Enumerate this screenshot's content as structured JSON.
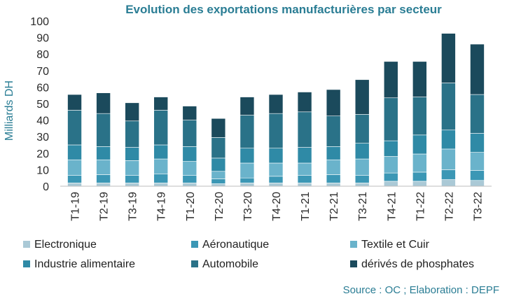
{
  "chart_data": {
    "type": "bar",
    "stacked": true,
    "title": "Evolution des exportations manufacturières par secteur",
    "ylabel": "Milliards DH",
    "xlabel": "",
    "ylim": [
      0,
      100
    ],
    "yticks": [
      0,
      10,
      20,
      30,
      40,
      50,
      60,
      70,
      80,
      90,
      100
    ],
    "categories": [
      "T1-19",
      "T2-19",
      "T3-19",
      "T4-19",
      "T1-20",
      "T2-20",
      "T3-20",
      "T4-20",
      "T1-21",
      "T2-21",
      "T3-21",
      "T4-21",
      "T1-22",
      "T2-22",
      "T3-22"
    ],
    "series": [
      {
        "name": "Electronique",
        "color": "#aac9d6",
        "values": [
          2,
          2,
          2,
          2,
          2,
          1.5,
          2,
          2,
          2,
          2,
          2,
          3,
          3,
          4,
          3.5
        ]
      },
      {
        "name": "Aéronautique",
        "color": "#3b97b5",
        "values": [
          4.5,
          5,
          4.5,
          5.5,
          4.5,
          3,
          3,
          4,
          4.5,
          5,
          4.5,
          5,
          5.5,
          6,
          6
        ]
      },
      {
        "name": "Textile et Cuir",
        "color": "#6ab3cb",
        "values": [
          9.5,
          9,
          9,
          9,
          8.5,
          4.5,
          9,
          8,
          7.5,
          9,
          10,
          10,
          11,
          12.5,
          11
        ]
      },
      {
        "name": "Industrie alimentaire",
        "color": "#2f8aa6",
        "values": [
          9,
          8,
          8,
          8.5,
          9,
          8,
          9,
          9,
          9.5,
          8,
          9.5,
          9.5,
          11.5,
          11.5,
          11.5
        ]
      },
      {
        "name": "Automobile",
        "color": "#2a7288",
        "values": [
          21,
          20,
          16,
          21,
          16,
          12.5,
          20,
          21,
          21.5,
          18.5,
          17.5,
          26,
          23,
          28.5,
          23.5
        ]
      },
      {
        "name": "dérivés de phosphates",
        "color": "#1b4a5c",
        "values": [
          9.5,
          12.5,
          11,
          8,
          8.5,
          11.5,
          11,
          11.5,
          12,
          16,
          21,
          22,
          21.5,
          30,
          30.5
        ]
      }
    ],
    "legend_position": "bottom",
    "grid": false
  },
  "source_note": "Source : OC ;  Elaboration : DEPF"
}
